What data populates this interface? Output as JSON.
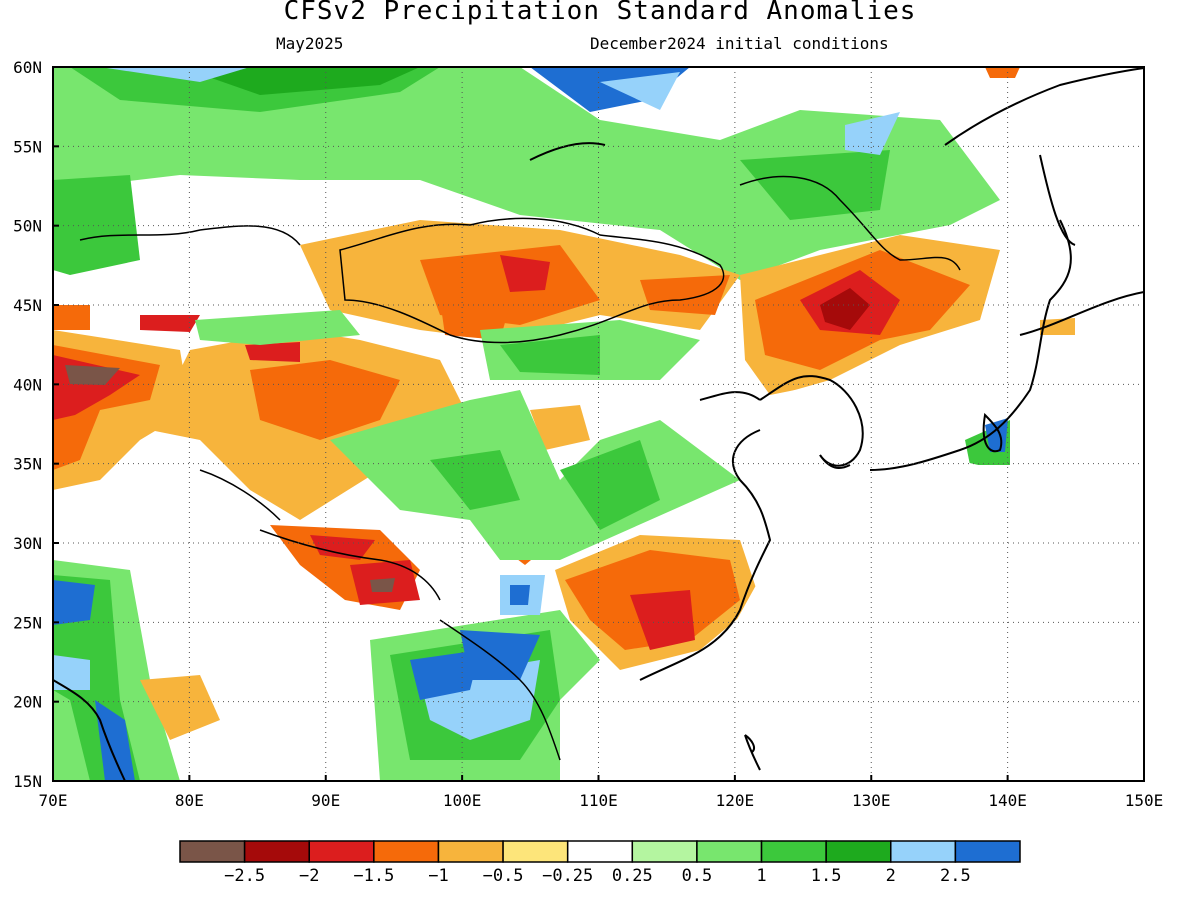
{
  "header": {
    "title": "CFSv2 Precipitation Standard Anomalies",
    "valid_month": "May2025",
    "initial_conditions": "December2024 initial conditions"
  },
  "map": {
    "lon_range": [
      70,
      150
    ],
    "lat_range": [
      15,
      60
    ],
    "lon_ticks": [
      "70E",
      "80E",
      "90E",
      "100E",
      "110E",
      "120E",
      "130E",
      "140E",
      "150E"
    ],
    "lat_ticks": [
      "15N",
      "20N",
      "25N",
      "30N",
      "35N",
      "40N",
      "45N",
      "50N",
      "55N",
      "60N"
    ],
    "gridlines": "dotted"
  },
  "colorbar": {
    "colors": [
      "#7a5548",
      "#a50a0a",
      "#dc1e1e",
      "#f56a0a",
      "#f7b43c",
      "#fde57a",
      "#ffffff",
      "#b4f5a0",
      "#78e66e",
      "#3cc83c",
      "#1eaa1e",
      "#96d2fa",
      "#1e6ed2"
    ],
    "labels": [
      "−2.5",
      "−2",
      "−1.5",
      "−1",
      "−0.5",
      "−0.25",
      "0.25",
      "0.5",
      "1",
      "1.5",
      "2",
      "2.5"
    ]
  }
}
